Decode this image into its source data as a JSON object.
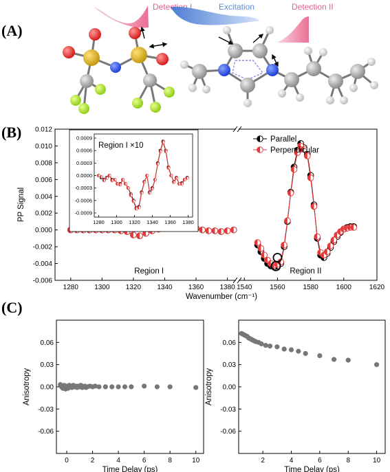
{
  "panel_a": {
    "label": "(A)",
    "detection1": "Detection I",
    "excitation": "Excitation",
    "detection2": "Detection II",
    "colors": {
      "detection": "#e8608a",
      "excitation": "#5b8fd6"
    }
  },
  "panel_b_label": "(B)",
  "panel_c_label": "(C)",
  "chart_data": [
    {
      "id": "B-main",
      "type": "scatter",
      "ylabel": "PP Signal",
      "xlabel": "Wavenumber (cm⁻¹)",
      "xlim": [
        1270,
        1620
      ],
      "ylim": [
        -0.006,
        0.012
      ],
      "axis_break_between": [
        1385,
        1537
      ],
      "x_ticks": [
        1280,
        1300,
        1320,
        1340,
        1360,
        1380,
        1540,
        1560,
        1580,
        1600,
        1620
      ],
      "y_ticks": [
        "0.012",
        "0.010",
        "0.008",
        "0.006",
        "0.004",
        "0.002",
        "0.000",
        "-0.002",
        "-0.004",
        "-0.006"
      ],
      "annotations": [
        "Region I",
        "Region II"
      ],
      "legend": [
        "Parallel",
        "Perpendicular"
      ],
      "legend_position": "top-right",
      "series": [
        {
          "name": "Parallel",
          "color": "#000000",
          "style": "half-filled black circles with line",
          "x": [
            1280,
            1284,
            1288,
            1292,
            1296,
            1300,
            1304,
            1308,
            1312,
            1316,
            1320,
            1324,
            1328,
            1332,
            1336,
            1340,
            1344,
            1348,
            1352,
            1356,
            1360,
            1364,
            1368,
            1372,
            1376,
            1380,
            1384,
            1548,
            1550,
            1552,
            1554,
            1556,
            1558,
            1560,
            1562,
            1564,
            1566,
            1568,
            1570,
            1572,
            1574,
            1576,
            1578,
            1580,
            1582,
            1584,
            1586,
            1588,
            1590,
            1592,
            1594,
            1596,
            1598,
            1600,
            1602,
            1604,
            1606
          ],
          "y": [
            0.0,
            0.0,
            0.0,
            0.0,
            0.0,
            0.0,
            0.0,
            0.0,
            -0.0001,
            -0.0002,
            -0.0006,
            -0.0007,
            -0.0004,
            -0.0001,
            0.0001,
            0.0002,
            0.0004,
            0.0007,
            0.0006,
            0.0004,
            0.0002,
            0.0,
            -0.0001,
            -0.0001,
            -0.0002,
            -0.0001,
            0.0,
            -0.0018,
            -0.0026,
            -0.0034,
            -0.004,
            -0.0043,
            -0.0044,
            -0.0043,
            -0.004,
            -0.002,
            0.001,
            0.0045,
            0.0075,
            0.0095,
            0.0103,
            0.0098,
            0.009,
            0.0065,
            0.003,
            -0.001,
            -0.003,
            -0.0033,
            -0.0028,
            -0.0021,
            -0.0014,
            -0.0008,
            -0.0003,
            0.0001,
            0.0003,
            0.0004,
            0.0004
          ]
        },
        {
          "name": "Perpendicular",
          "color": "#e63a3a",
          "style": "half-filled red circles with line",
          "x": [
            1280,
            1284,
            1288,
            1292,
            1296,
            1300,
            1304,
            1308,
            1312,
            1316,
            1320,
            1324,
            1328,
            1332,
            1336,
            1340,
            1344,
            1348,
            1352,
            1356,
            1360,
            1364,
            1368,
            1372,
            1376,
            1380,
            1384,
            1548,
            1550,
            1552,
            1554,
            1556,
            1558,
            1560,
            1562,
            1564,
            1566,
            1568,
            1570,
            1572,
            1574,
            1576,
            1578,
            1580,
            1582,
            1584,
            1586,
            1588,
            1590,
            1592,
            1594,
            1596,
            1598,
            1600,
            1602,
            1604,
            1606
          ],
          "y": [
            0.0,
            0.0,
            0.0,
            0.0,
            0.0,
            0.0,
            0.0,
            0.0,
            -0.0001,
            -0.0002,
            -0.0006,
            -0.0007,
            -0.0004,
            -0.0001,
            0.0001,
            0.0002,
            0.0004,
            0.0007,
            0.0006,
            0.0004,
            0.0002,
            0.0,
            -0.0001,
            -0.0001,
            -0.0002,
            -0.0001,
            0.0,
            -0.0015,
            -0.0022,
            -0.003,
            -0.0036,
            -0.004,
            -0.0042,
            -0.0041,
            -0.0038,
            -0.0018,
            0.0011,
            0.0044,
            0.0072,
            0.0092,
            0.01,
            0.0096,
            0.0088,
            0.0062,
            0.0028,
            -0.0008,
            -0.0027,
            -0.003,
            -0.0026,
            -0.0019,
            -0.0012,
            -0.0006,
            -0.0002,
            0.0001,
            0.0002,
            0.0003,
            0.0003
          ]
        }
      ]
    },
    {
      "id": "B-inset",
      "type": "line",
      "title": "Region I ×10",
      "xlim": [
        1275,
        1385
      ],
      "ylim": [
        -0.001,
        0.001
      ],
      "x_ticks": [
        1280,
        1300,
        1320,
        1340,
        1360,
        1380
      ],
      "y_ticks": [
        "0.0009",
        "0.0006",
        "0.0003",
        "0.0000",
        "-0.0003",
        "-0.0006",
        "-0.0009"
      ],
      "series": [
        {
          "name": "Parallel",
          "color": "#000000",
          "x": [
            1280,
            1283,
            1286,
            1289,
            1292,
            1295,
            1298,
            1301,
            1304,
            1307,
            1310,
            1313,
            1316,
            1319,
            1322,
            1325,
            1328,
            1331,
            1334,
            1337,
            1340,
            1343,
            1346,
            1349,
            1352,
            1355,
            1358,
            1361,
            1364,
            1367,
            1370,
            1373,
            1376,
            1379
          ],
          "y": [
            0.0,
            -5e-05,
            -0.0001,
            -5e-05,
            0.0,
            -0.0001,
            -0.0001,
            -0.0002,
            -0.0002,
            -0.0001,
            -0.0002,
            -0.0003,
            -0.00045,
            -0.0006,
            -0.00078,
            -0.00075,
            -0.0004,
            -0.00015,
            0.0,
            -0.0004,
            -0.0003,
            -0.0001,
            0.0003,
            0.0006,
            0.00082,
            0.0006,
            0.0002,
            0.0,
            -0.00015,
            -5e-05,
            -0.0002,
            -0.00018,
            -0.0001,
            -5e-05
          ]
        },
        {
          "name": "Perpendicular",
          "color": "#e63a3a",
          "x": [
            1280,
            1283,
            1286,
            1289,
            1292,
            1295,
            1298,
            1301,
            1304,
            1307,
            1310,
            1313,
            1316,
            1319,
            1322,
            1325,
            1328,
            1331,
            1334,
            1337,
            1340,
            1343,
            1346,
            1349,
            1352,
            1355,
            1358,
            1361,
            1364,
            1367,
            1370,
            1373,
            1376,
            1379
          ],
          "y": [
            0.0,
            -3e-05,
            -0.00012,
            -6e-05,
            0.0,
            -0.00012,
            -0.0001,
            -0.0002,
            -0.00022,
            -0.0001,
            -0.0002,
            -0.0003,
            -0.00048,
            -0.00062,
            -0.0008,
            -0.00077,
            -0.00042,
            -0.00016,
            0.0,
            -0.00042,
            -0.00032,
            -0.0001,
            0.00028,
            0.00058,
            0.0008,
            0.00058,
            0.00018,
            0.0,
            -0.00016,
            -6e-05,
            -0.0002,
            -0.0002,
            -0.0001,
            -6e-05
          ]
        }
      ]
    },
    {
      "id": "C-left",
      "type": "scatter",
      "ylabel": "Anisotropy",
      "xlabel": "Time Delay (ps)",
      "xlim": [
        -0.8,
        10.6
      ],
      "ylim": [
        -0.09,
        0.09
      ],
      "x_ticks": [
        0,
        2,
        4,
        6,
        8,
        10
      ],
      "y_ticks": [
        "0.06",
        "0.03",
        "0.00",
        "-0.03",
        "-0.06"
      ],
      "series": [
        {
          "name": "",
          "color": "#777777",
          "x": [
            -0.5,
            -0.4,
            -0.3,
            -0.2,
            -0.1,
            0.0,
            0.1,
            0.2,
            0.3,
            0.4,
            0.5,
            0.6,
            0.7,
            0.8,
            0.9,
            1.0,
            1.1,
            1.2,
            1.3,
            1.4,
            1.5,
            1.6,
            1.8,
            2.0,
            2.2,
            2.5,
            3.0,
            3.5,
            4.0,
            4.5,
            5.0,
            6.0,
            7.0,
            8.0,
            10.0
          ],
          "y": [
            0.003,
            0.0,
            -0.002,
            0.002,
            -0.003,
            0.001,
            -0.002,
            0.002,
            0.0,
            -0.001,
            0.002,
            0.0,
            0.001,
            -0.001,
            0.001,
            0.0,
            0.002,
            -0.001,
            0.0,
            0.001,
            -0.001,
            0.0,
            0.001,
            0.0,
            0.001,
            0.0,
            0.0,
            0.0,
            0.0,
            0.0,
            0.0,
            0.001,
            0.0,
            0.0,
            -0.001
          ]
        }
      ]
    },
    {
      "id": "C-right",
      "type": "scatter",
      "ylabel": "Anisotropy",
      "xlabel": "Time Delay (ps)",
      "xlim": [
        0.3,
        10.6
      ],
      "ylim": [
        -0.09,
        0.09
      ],
      "x_ticks": [
        2,
        4,
        6,
        8,
        10
      ],
      "y_ticks": [
        "0.06",
        "0.03",
        "0.00",
        "-0.03",
        "-0.06"
      ],
      "series": [
        {
          "name": "",
          "color": "#777777",
          "x": [
            0.5,
            0.6,
            0.7,
            0.8,
            0.9,
            1.0,
            1.1,
            1.2,
            1.3,
            1.4,
            1.5,
            1.7,
            1.9,
            2.2,
            2.5,
            3.0,
            3.5,
            4.0,
            4.5,
            5.0,
            6.0,
            7.0,
            8.0,
            10.0
          ],
          "y": [
            0.072,
            0.071,
            0.07,
            0.069,
            0.068,
            0.066,
            0.065,
            0.064,
            0.063,
            0.062,
            0.061,
            0.06,
            0.058,
            0.056,
            0.055,
            0.054,
            0.051,
            0.05,
            0.048,
            0.045,
            0.042,
            0.037,
            0.036,
            0.03
          ]
        }
      ]
    }
  ]
}
